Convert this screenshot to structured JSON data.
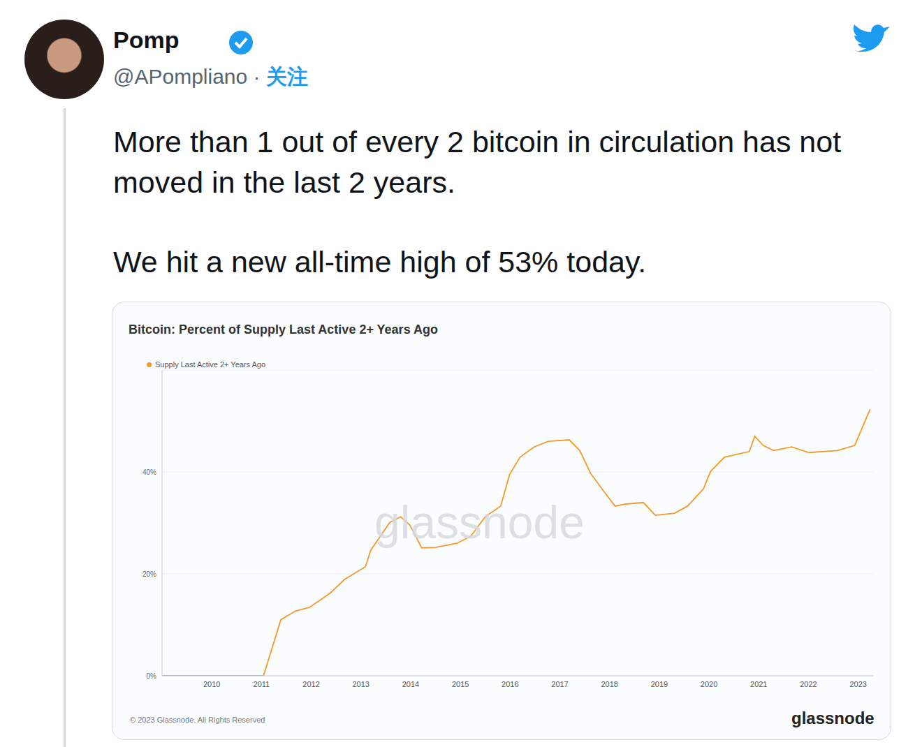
{
  "tweet": {
    "name": "Pomp",
    "handle": "@APompliano",
    "separator": "·",
    "follow": "关注",
    "paragraphs": [
      "More than 1 out of every 2 bitcoin in circulation has not moved in the last 2 years.",
      "We hit a new all-time high of 53% today."
    ]
  },
  "chart_data": {
    "type": "line",
    "title": "Bitcoin: Percent of Supply Last Active 2+ Years Ago",
    "x": [
      2009.0,
      2011.04,
      2011.39,
      2011.68,
      2011.96,
      2012.38,
      2012.67,
      2013.09,
      2013.2,
      2013.37,
      2013.58,
      2013.8,
      2013.98,
      2014.08,
      2014.22,
      2014.5,
      2014.93,
      2015.21,
      2015.5,
      2015.81,
      2015.99,
      2016.2,
      2016.48,
      2016.77,
      2017.19,
      2017.4,
      2017.62,
      2017.9,
      2018.11,
      2018.33,
      2018.68,
      2018.92,
      2019.31,
      2019.57,
      2019.89,
      2020.03,
      2020.31,
      2020.81,
      2020.92,
      2021.09,
      2021.3,
      2021.66,
      2022.01,
      2022.58,
      2022.93,
      2023.07,
      2023.24
    ],
    "series": [
      {
        "name": "Supply Last Active 2+ Years Ago",
        "color": "#f29b2c",
        "values": [
          0,
          0,
          11,
          12.7,
          13.4,
          16.2,
          18.9,
          21.4,
          24.7,
          27.1,
          30.1,
          31.2,
          29.6,
          27.8,
          25.1,
          25.2,
          26,
          27.4,
          31.2,
          33.3,
          39.5,
          42.9,
          44.9,
          46,
          46.3,
          44.2,
          39.7,
          36,
          33.3,
          33.7,
          34,
          31.5,
          31.9,
          33.3,
          36.7,
          40.1,
          42.9,
          44,
          47,
          45.2,
          44.2,
          44.9,
          43.8,
          44.2,
          45.2,
          48.4,
          52.3
        ]
      }
    ],
    "xlim": [
      2009,
      2023.3
    ],
    "xticks": [
      2010,
      2011,
      2012,
      2013,
      2014,
      2015,
      2016,
      2017,
      2018,
      2019,
      2020,
      2021,
      2022,
      2023
    ],
    "ylim": [
      0,
      60
    ],
    "yticks": [
      {
        "value": 0,
        "label": "0%"
      },
      {
        "value": 20,
        "label": "20%"
      },
      {
        "value": 40,
        "label": "40%"
      }
    ],
    "grid": true,
    "legend": "top-left"
  },
  "watermark": "glassnode",
  "footer": {
    "copyright": "© 2023 Glassnode. All Rights Reserved",
    "brand": "glassnode"
  }
}
